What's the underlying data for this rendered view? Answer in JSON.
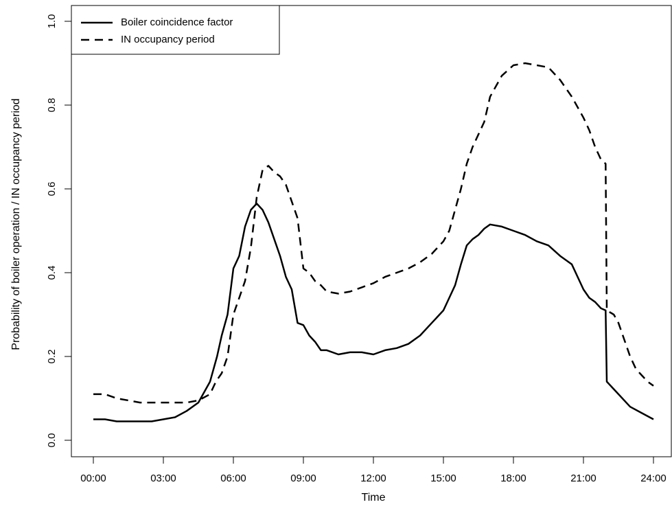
{
  "chart_data": {
    "type": "line",
    "xlabel": "Time",
    "ylabel": "Probability of boiler operation / IN occupancy period",
    "xlim": [
      0,
      24
    ],
    "ylim": [
      0,
      1.0
    ],
    "x_ticks": [
      {
        "value": 0,
        "label": "00:00"
      },
      {
        "value": 3,
        "label": "03:00"
      },
      {
        "value": 6,
        "label": "06:00"
      },
      {
        "value": 9,
        "label": "09:00"
      },
      {
        "value": 12,
        "label": "12:00"
      },
      {
        "value": 15,
        "label": "15:00"
      },
      {
        "value": 18,
        "label": "18:00"
      },
      {
        "value": 21,
        "label": "21:00"
      },
      {
        "value": 24,
        "label": "24:00"
      }
    ],
    "y_ticks": [
      {
        "value": 0.0,
        "label": "0.0"
      },
      {
        "value": 0.2,
        "label": "0.2"
      },
      {
        "value": 0.4,
        "label": "0.4"
      },
      {
        "value": 0.6,
        "label": "0.6"
      },
      {
        "value": 0.8,
        "label": "0.8"
      },
      {
        "value": 1.0,
        "label": "1.0"
      }
    ],
    "grid": false,
    "legend_position": "top-left",
    "series": [
      {
        "name": "Boiler coincidence factor",
        "line_style": "solid",
        "color": "#000000",
        "x": [
          0.0,
          0.5,
          1.0,
          1.5,
          2.0,
          2.5,
          3.0,
          3.5,
          4.0,
          4.5,
          5.0,
          5.3,
          5.5,
          5.75,
          6.0,
          6.25,
          6.5,
          6.75,
          7.0,
          7.25,
          7.5,
          7.75,
          8.0,
          8.25,
          8.5,
          8.75,
          9.0,
          9.25,
          9.5,
          9.75,
          10.0,
          10.5,
          11.0,
          11.5,
          12.0,
          12.5,
          13.0,
          13.5,
          14.0,
          14.5,
          15.0,
          15.25,
          15.5,
          15.75,
          16.0,
          16.25,
          16.5,
          16.75,
          17.0,
          17.5,
          18.0,
          18.5,
          19.0,
          19.5,
          20.0,
          20.5,
          21.0,
          21.25,
          21.5,
          21.75,
          21.95,
          22.0,
          22.5,
          23.0,
          23.5,
          24.0
        ],
        "y": [
          0.05,
          0.05,
          0.045,
          0.045,
          0.045,
          0.045,
          0.05,
          0.055,
          0.07,
          0.09,
          0.14,
          0.2,
          0.25,
          0.3,
          0.41,
          0.44,
          0.51,
          0.55,
          0.565,
          0.55,
          0.52,
          0.48,
          0.44,
          0.39,
          0.36,
          0.28,
          0.275,
          0.25,
          0.235,
          0.215,
          0.215,
          0.205,
          0.21,
          0.21,
          0.205,
          0.215,
          0.22,
          0.23,
          0.25,
          0.28,
          0.31,
          0.34,
          0.37,
          0.42,
          0.465,
          0.48,
          0.49,
          0.505,
          0.515,
          0.51,
          0.5,
          0.49,
          0.475,
          0.465,
          0.44,
          0.42,
          0.36,
          0.34,
          0.33,
          0.315,
          0.31,
          0.14,
          0.11,
          0.08,
          0.065,
          0.05
        ]
      },
      {
        "name": "IN occupancy period",
        "line_style": "dashed",
        "color": "#000000",
        "x": [
          0.0,
          0.5,
          1.0,
          1.5,
          2.0,
          2.5,
          3.0,
          3.5,
          4.0,
          4.5,
          5.0,
          5.25,
          5.5,
          5.75,
          6.0,
          6.25,
          6.5,
          6.75,
          7.0,
          7.25,
          7.5,
          7.75,
          8.0,
          8.25,
          8.5,
          8.75,
          9.0,
          9.25,
          9.5,
          9.75,
          10.0,
          10.5,
          11.0,
          11.5,
          12.0,
          12.5,
          13.0,
          13.5,
          14.0,
          14.5,
          15.0,
          15.25,
          15.5,
          15.75,
          16.0,
          16.25,
          16.5,
          16.75,
          17.0,
          17.5,
          18.0,
          18.5,
          19.0,
          19.5,
          20.0,
          20.5,
          21.0,
          21.25,
          21.5,
          21.75,
          21.95,
          22.0,
          22.3,
          22.5,
          22.75,
          23.0,
          23.25,
          23.5,
          23.75,
          24.0
        ],
        "y": [
          0.11,
          0.11,
          0.1,
          0.095,
          0.09,
          0.09,
          0.09,
          0.09,
          0.09,
          0.095,
          0.11,
          0.14,
          0.16,
          0.2,
          0.3,
          0.34,
          0.38,
          0.46,
          0.58,
          0.645,
          0.655,
          0.64,
          0.63,
          0.61,
          0.57,
          0.53,
          0.41,
          0.4,
          0.38,
          0.37,
          0.355,
          0.35,
          0.355,
          0.365,
          0.375,
          0.39,
          0.4,
          0.41,
          0.425,
          0.445,
          0.475,
          0.5,
          0.55,
          0.6,
          0.66,
          0.7,
          0.73,
          0.76,
          0.82,
          0.87,
          0.895,
          0.9,
          0.895,
          0.89,
          0.86,
          0.82,
          0.77,
          0.74,
          0.7,
          0.67,
          0.66,
          0.31,
          0.3,
          0.28,
          0.24,
          0.2,
          0.17,
          0.155,
          0.14,
          0.13
        ]
      }
    ]
  }
}
